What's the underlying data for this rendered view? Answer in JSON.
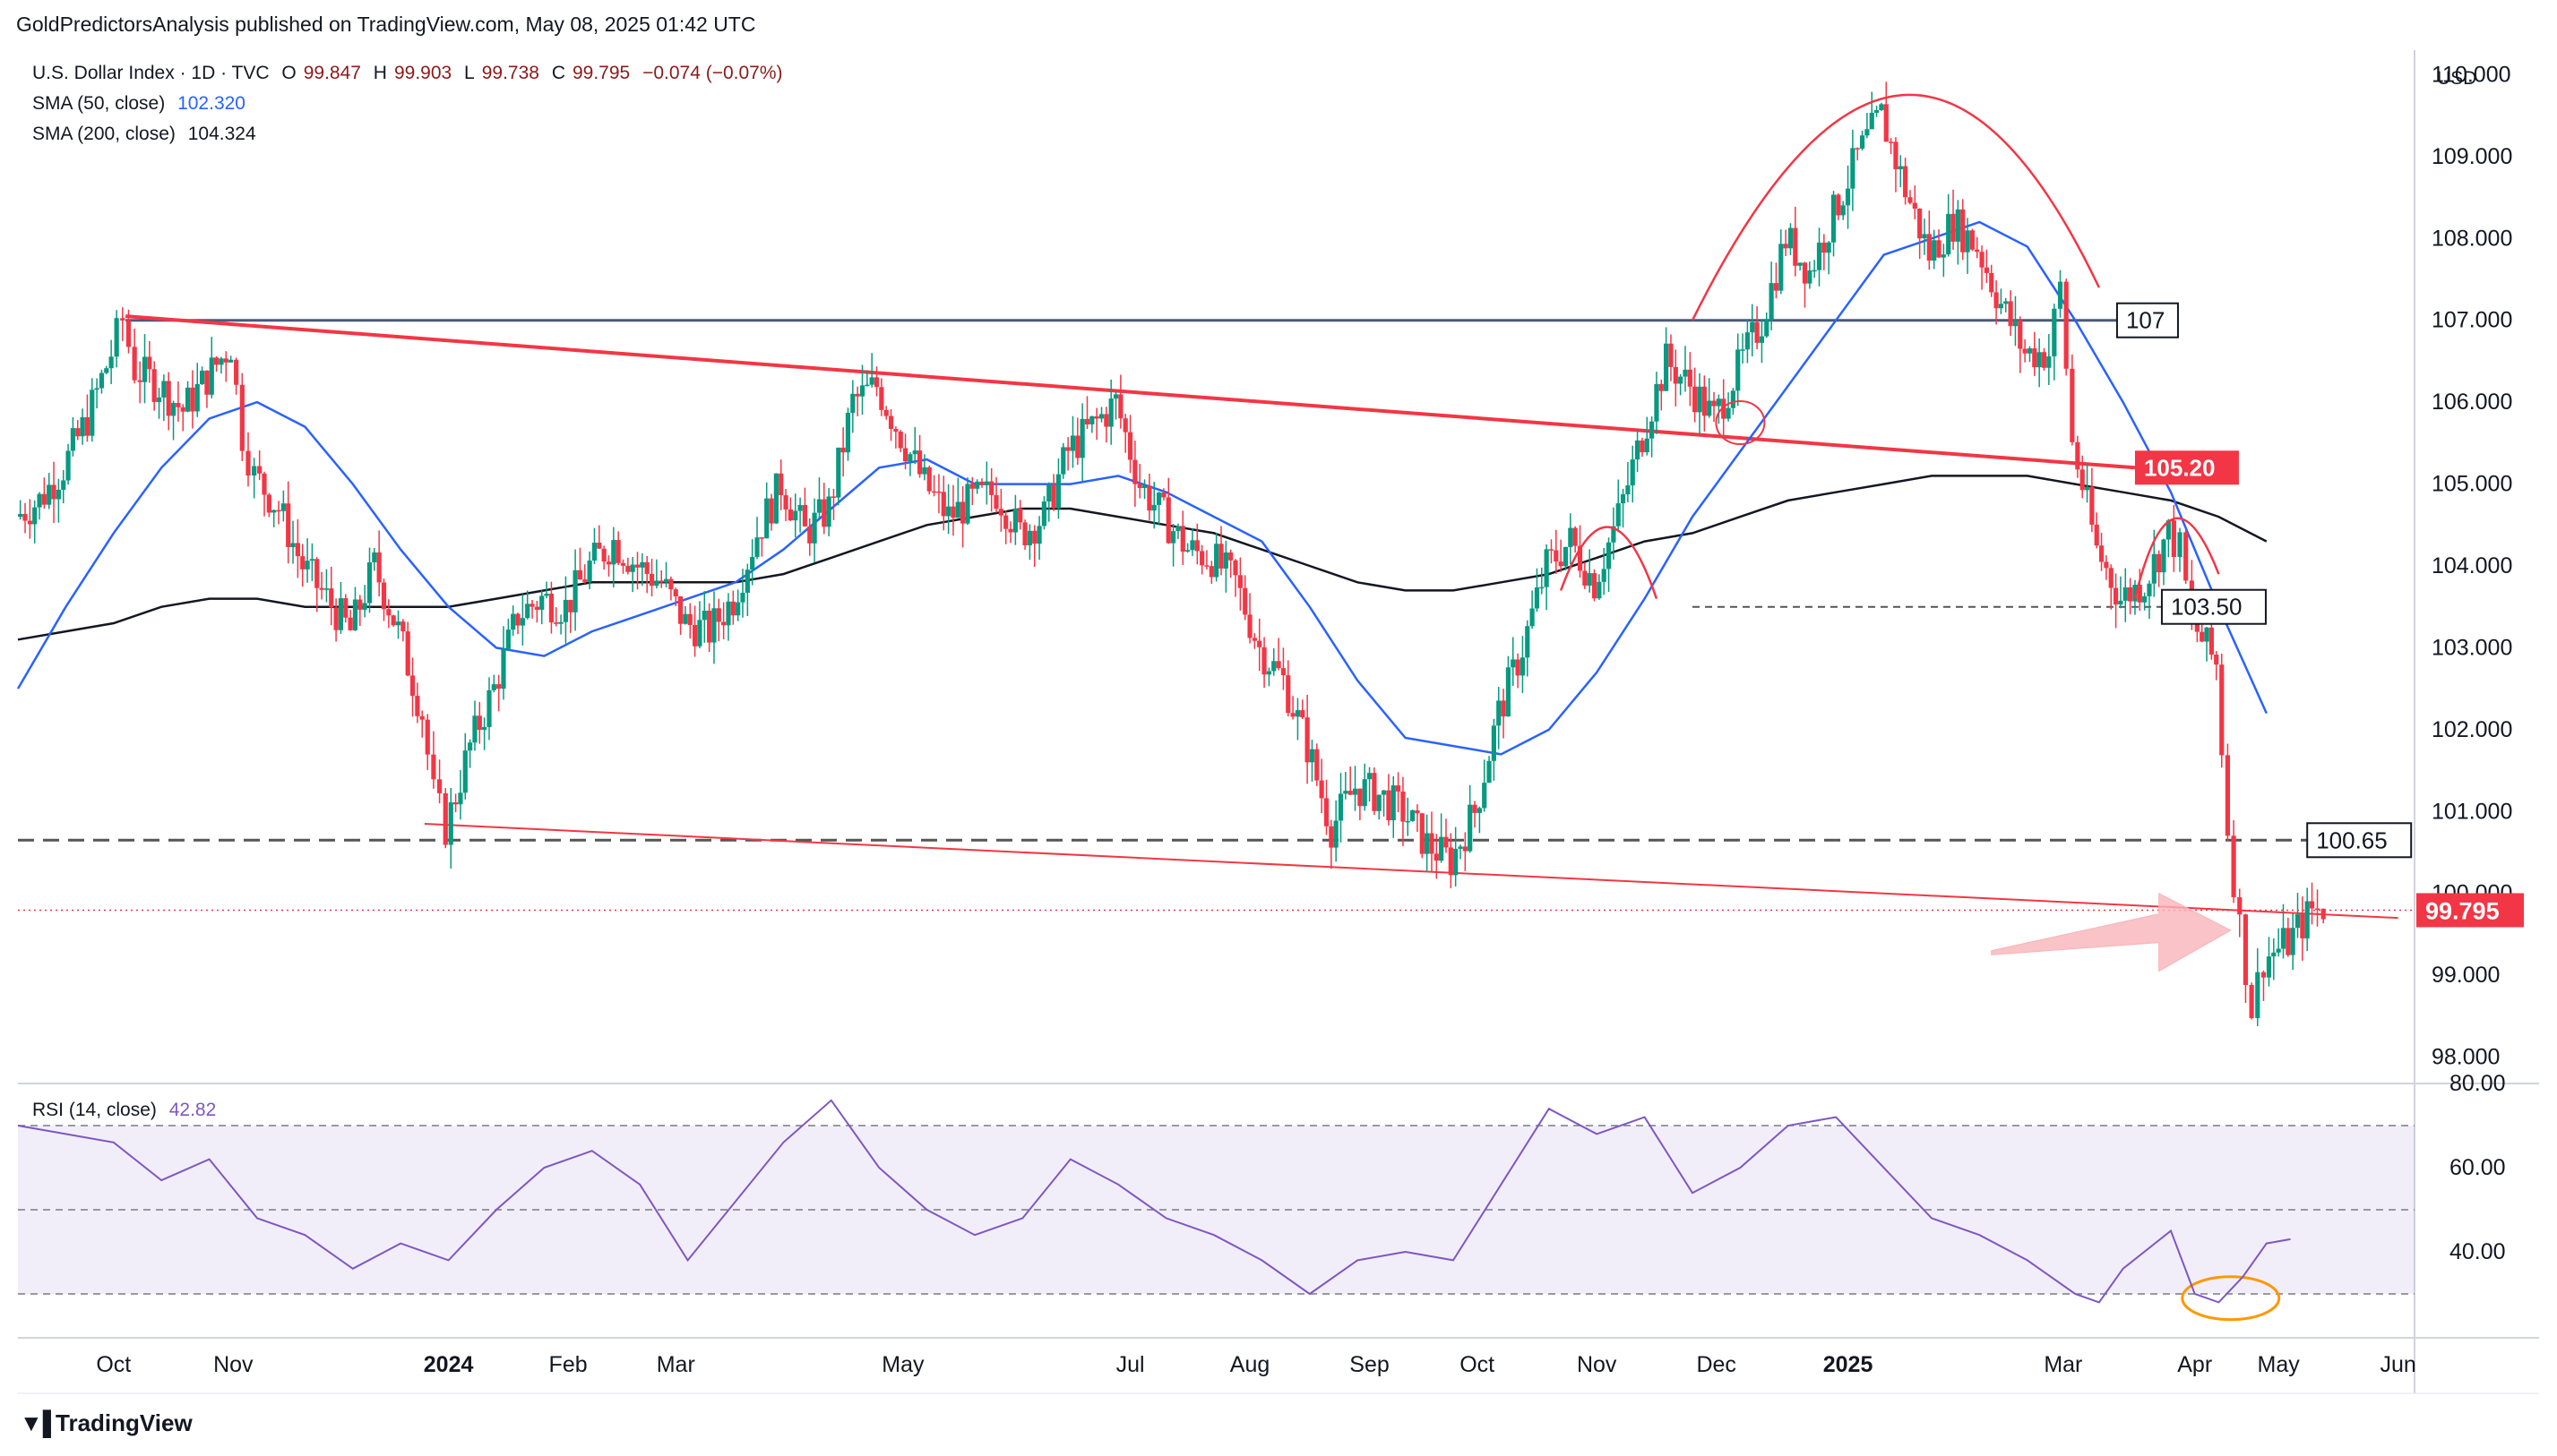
{
  "header": "GoldPredictorsAnalysis published on TradingView.com, May 08, 2025 01:42 UTC",
  "footer": {
    "brand": "TradingView"
  },
  "legend": {
    "symbol": "U.S. Dollar Index · 1D · TVC",
    "open_label": "O",
    "open": "99.847",
    "high_label": "H",
    "high": "99.903",
    "low_label": "L",
    "low": "99.738",
    "close_label": "C",
    "close": "99.795",
    "change": "−0.074 (−0.07%)",
    "sma50_label": "SMA (50, close)",
    "sma50_value": "102.320",
    "sma200_label": "SMA (200, close)",
    "sma200_value": "104.324",
    "rsi_label": "RSI (14, close)",
    "rsi_value": "42.82"
  },
  "colors": {
    "up": "#089981",
    "down": "#f23645",
    "sma50": "#2962ff",
    "sma200": "#131722",
    "rsi": "#7e57c2",
    "red_line": "#f23645",
    "gray_line": "#5d606b",
    "orange": "#ff9800"
  },
  "chart_data": [
    {
      "type": "line",
      "title": "U.S. Dollar Index · 1D · TVC",
      "currency": "USD",
      "ylim": [
        97.7,
        110.3
      ],
      "y_ticks": [
        110.0,
        109.0,
        108.0,
        107.0,
        106.0,
        105.0,
        104.0,
        103.0,
        102.0,
        101.0,
        100.0,
        99.0,
        98.0
      ],
      "y_tick_labels": [
        "110.000",
        "109.000",
        "108.000",
        "107.000",
        "106.000",
        "105.000",
        "104.000",
        "103.000",
        "102.000",
        "101.000",
        "100.000",
        "99.000",
        "98.000"
      ],
      "x_ticks": [
        "Oct",
        "Nov",
        "2024",
        "Feb",
        "Mar",
        "May",
        "Jul",
        "Aug",
        "Sep",
        "Oct",
        "Nov",
        "Dec",
        "2025",
        "Mar",
        "Apr",
        "May",
        "Jun"
      ],
      "x_tick_bold": [
        "2024",
        "2025"
      ],
      "x_tick_t": [
        0.04,
        0.09,
        0.18,
        0.23,
        0.275,
        0.37,
        0.465,
        0.515,
        0.565,
        0.61,
        0.66,
        0.71,
        0.765,
        0.855,
        0.91,
        0.945,
        0.995
      ],
      "close_path": [
        [
          0.0,
          104.6
        ],
        [
          0.01,
          104.8
        ],
        [
          0.02,
          105.2
        ],
        [
          0.03,
          105.8
        ],
        [
          0.04,
          106.6
        ],
        [
          0.045,
          107.0
        ],
        [
          0.05,
          106.4
        ],
        [
          0.06,
          106.2
        ],
        [
          0.07,
          105.9
        ],
        [
          0.08,
          106.3
        ],
        [
          0.09,
          106.7
        ],
        [
          0.095,
          105.6
        ],
        [
          0.1,
          105.1
        ],
        [
          0.11,
          104.7
        ],
        [
          0.12,
          104.0
        ],
        [
          0.13,
          103.6
        ],
        [
          0.14,
          103.2
        ],
        [
          0.15,
          104.0
        ],
        [
          0.16,
          103.2
        ],
        [
          0.17,
          102.2
        ],
        [
          0.175,
          101.2
        ],
        [
          0.18,
          100.8
        ],
        [
          0.19,
          101.8
        ],
        [
          0.2,
          102.5
        ],
        [
          0.21,
          103.4
        ],
        [
          0.22,
          103.6
        ],
        [
          0.23,
          103.5
        ],
        [
          0.24,
          104.0
        ],
        [
          0.25,
          104.3
        ],
        [
          0.26,
          104.0
        ],
        [
          0.27,
          103.8
        ],
        [
          0.28,
          103.3
        ],
        [
          0.29,
          103.2
        ],
        [
          0.3,
          103.6
        ],
        [
          0.31,
          104.4
        ],
        [
          0.32,
          105.0
        ],
        [
          0.33,
          104.4
        ],
        [
          0.34,
          104.7
        ],
        [
          0.35,
          106.0
        ],
        [
          0.36,
          106.2
        ],
        [
          0.37,
          105.6
        ],
        [
          0.38,
          105.0
        ],
        [
          0.39,
          104.6
        ],
        [
          0.4,
          104.8
        ],
        [
          0.41,
          104.9
        ],
        [
          0.42,
          104.4
        ],
        [
          0.43,
          104.6
        ],
        [
          0.44,
          105.4
        ],
        [
          0.45,
          105.7
        ],
        [
          0.46,
          106.0
        ],
        [
          0.47,
          105.0
        ],
        [
          0.48,
          104.6
        ],
        [
          0.49,
          104.2
        ],
        [
          0.5,
          104.1
        ],
        [
          0.51,
          103.8
        ],
        [
          0.52,
          103.0
        ],
        [
          0.53,
          102.6
        ],
        [
          0.54,
          101.8
        ],
        [
          0.55,
          100.8
        ],
        [
          0.56,
          101.3
        ],
        [
          0.57,
          101.2
        ],
        [
          0.58,
          101.0
        ],
        [
          0.59,
          100.6
        ],
        [
          0.6,
          100.4
        ],
        [
          0.61,
          101.0
        ],
        [
          0.62,
          102.2
        ],
        [
          0.63,
          103.0
        ],
        [
          0.64,
          104.0
        ],
        [
          0.65,
          104.3
        ],
        [
          0.66,
          103.8
        ],
        [
          0.67,
          104.6
        ],
        [
          0.68,
          105.6
        ],
        [
          0.69,
          106.5
        ],
        [
          0.7,
          106.2
        ],
        [
          0.71,
          105.8
        ],
        [
          0.72,
          106.4
        ],
        [
          0.73,
          107.0
        ],
        [
          0.74,
          108.0
        ],
        [
          0.75,
          107.6
        ],
        [
          0.76,
          108.3
        ],
        [
          0.77,
          109.0
        ],
        [
          0.78,
          109.5
        ],
        [
          0.79,
          108.6
        ],
        [
          0.8,
          107.8
        ],
        [
          0.81,
          108.2
        ],
        [
          0.82,
          107.9
        ],
        [
          0.83,
          107.2
        ],
        [
          0.84,
          106.6
        ],
        [
          0.85,
          106.6
        ],
        [
          0.855,
          107.4
        ],
        [
          0.86,
          105.5
        ],
        [
          0.87,
          104.2
        ],
        [
          0.88,
          103.6
        ],
        [
          0.89,
          103.8
        ],
        [
          0.9,
          104.4
        ],
        [
          0.905,
          104.2
        ],
        [
          0.91,
          103.3
        ],
        [
          0.92,
          102.8
        ],
        [
          0.925,
          100.8
        ],
        [
          0.93,
          99.6
        ],
        [
          0.935,
          98.6
        ],
        [
          0.94,
          99.2
        ],
        [
          0.95,
          99.4
        ],
        [
          0.96,
          99.8
        ],
        [
          0.965,
          99.8
        ]
      ],
      "sma50_path": [
        [
          0.0,
          102.5
        ],
        [
          0.02,
          103.5
        ],
        [
          0.04,
          104.4
        ],
        [
          0.06,
          105.2
        ],
        [
          0.08,
          105.8
        ],
        [
          0.1,
          106.0
        ],
        [
          0.12,
          105.7
        ],
        [
          0.14,
          105.0
        ],
        [
          0.16,
          104.2
        ],
        [
          0.18,
          103.5
        ],
        [
          0.2,
          103.0
        ],
        [
          0.22,
          102.9
        ],
        [
          0.24,
          103.2
        ],
        [
          0.26,
          103.4
        ],
        [
          0.28,
          103.6
        ],
        [
          0.3,
          103.8
        ],
        [
          0.32,
          104.2
        ],
        [
          0.34,
          104.7
        ],
        [
          0.36,
          105.2
        ],
        [
          0.38,
          105.3
        ],
        [
          0.4,
          105.0
        ],
        [
          0.42,
          105.0
        ],
        [
          0.44,
          105.0
        ],
        [
          0.46,
          105.1
        ],
        [
          0.48,
          104.9
        ],
        [
          0.5,
          104.6
        ],
        [
          0.52,
          104.3
        ],
        [
          0.54,
          103.5
        ],
        [
          0.56,
          102.6
        ],
        [
          0.58,
          101.9
        ],
        [
          0.6,
          101.8
        ],
        [
          0.62,
          101.7
        ],
        [
          0.64,
          102.0
        ],
        [
          0.66,
          102.7
        ],
        [
          0.68,
          103.6
        ],
        [
          0.7,
          104.6
        ],
        [
          0.72,
          105.4
        ],
        [
          0.74,
          106.2
        ],
        [
          0.76,
          107.0
        ],
        [
          0.78,
          107.8
        ],
        [
          0.8,
          108.0
        ],
        [
          0.82,
          108.2
        ],
        [
          0.84,
          107.9
        ],
        [
          0.86,
          107.0
        ],
        [
          0.88,
          106.0
        ],
        [
          0.9,
          104.9
        ],
        [
          0.92,
          103.5
        ],
        [
          0.94,
          102.2
        ]
      ],
      "sma200_path": [
        [
          0.0,
          103.1
        ],
        [
          0.02,
          103.2
        ],
        [
          0.04,
          103.3
        ],
        [
          0.06,
          103.5
        ],
        [
          0.08,
          103.6
        ],
        [
          0.1,
          103.6
        ],
        [
          0.12,
          103.5
        ],
        [
          0.14,
          103.5
        ],
        [
          0.16,
          103.5
        ],
        [
          0.18,
          103.5
        ],
        [
          0.2,
          103.6
        ],
        [
          0.22,
          103.7
        ],
        [
          0.24,
          103.8
        ],
        [
          0.26,
          103.8
        ],
        [
          0.28,
          103.8
        ],
        [
          0.3,
          103.8
        ],
        [
          0.32,
          103.9
        ],
        [
          0.34,
          104.1
        ],
        [
          0.36,
          104.3
        ],
        [
          0.38,
          104.5
        ],
        [
          0.4,
          104.6
        ],
        [
          0.42,
          104.7
        ],
        [
          0.44,
          104.7
        ],
        [
          0.46,
          104.6
        ],
        [
          0.48,
          104.5
        ],
        [
          0.5,
          104.4
        ],
        [
          0.52,
          104.2
        ],
        [
          0.54,
          104.0
        ],
        [
          0.56,
          103.8
        ],
        [
          0.58,
          103.7
        ],
        [
          0.6,
          103.7
        ],
        [
          0.62,
          103.8
        ],
        [
          0.64,
          103.9
        ],
        [
          0.66,
          104.1
        ],
        [
          0.68,
          104.3
        ],
        [
          0.7,
          104.4
        ],
        [
          0.72,
          104.6
        ],
        [
          0.74,
          104.8
        ],
        [
          0.76,
          104.9
        ],
        [
          0.78,
          105.0
        ],
        [
          0.8,
          105.1
        ],
        [
          0.82,
          105.1
        ],
        [
          0.84,
          105.1
        ],
        [
          0.86,
          105.0
        ],
        [
          0.88,
          104.9
        ],
        [
          0.9,
          104.8
        ],
        [
          0.92,
          104.6
        ],
        [
          0.94,
          104.3
        ]
      ],
      "price_labels": [
        {
          "text": "107",
          "value": 107.0,
          "style": "box"
        },
        {
          "text": "105.20",
          "value": 105.2,
          "style": "red"
        },
        {
          "text": "103.50",
          "value": 103.5,
          "style": "box"
        },
        {
          "text": "100.65",
          "value": 100.65,
          "style": "box"
        },
        {
          "text": "99.795",
          "value": 99.795,
          "style": "current"
        }
      ]
    },
    {
      "type": "line",
      "title": "RSI (14, close)",
      "ylim": [
        20,
        80
      ],
      "y_ticks": [
        80,
        60,
        40
      ],
      "y_tick_labels": [
        "80.00",
        "60.00",
        "40.00"
      ],
      "band": [
        30,
        70
      ],
      "midline": 50,
      "rsi_path": [
        [
          0.0,
          70
        ],
        [
          0.02,
          68
        ],
        [
          0.04,
          66
        ],
        [
          0.06,
          57
        ],
        [
          0.08,
          62
        ],
        [
          0.1,
          48
        ],
        [
          0.12,
          44
        ],
        [
          0.14,
          36
        ],
        [
          0.16,
          42
        ],
        [
          0.18,
          38
        ],
        [
          0.2,
          50
        ],
        [
          0.22,
          60
        ],
        [
          0.24,
          64
        ],
        [
          0.26,
          56
        ],
        [
          0.28,
          38
        ],
        [
          0.3,
          52
        ],
        [
          0.32,
          66
        ],
        [
          0.34,
          76
        ],
        [
          0.36,
          60
        ],
        [
          0.38,
          50
        ],
        [
          0.4,
          44
        ],
        [
          0.42,
          48
        ],
        [
          0.44,
          62
        ],
        [
          0.46,
          56
        ],
        [
          0.48,
          48
        ],
        [
          0.5,
          44
        ],
        [
          0.52,
          38
        ],
        [
          0.54,
          30
        ],
        [
          0.56,
          38
        ],
        [
          0.58,
          40
        ],
        [
          0.6,
          38
        ],
        [
          0.62,
          56
        ],
        [
          0.64,
          74
        ],
        [
          0.66,
          68
        ],
        [
          0.68,
          72
        ],
        [
          0.7,
          54
        ],
        [
          0.72,
          60
        ],
        [
          0.74,
          70
        ],
        [
          0.76,
          72
        ],
        [
          0.78,
          60
        ],
        [
          0.8,
          48
        ],
        [
          0.82,
          44
        ],
        [
          0.84,
          38
        ],
        [
          0.86,
          30
        ],
        [
          0.87,
          28
        ],
        [
          0.88,
          36
        ],
        [
          0.9,
          45
        ],
        [
          0.91,
          30
        ],
        [
          0.92,
          28
        ],
        [
          0.93,
          34
        ],
        [
          0.94,
          42
        ],
        [
          0.95,
          43
        ]
      ]
    }
  ]
}
